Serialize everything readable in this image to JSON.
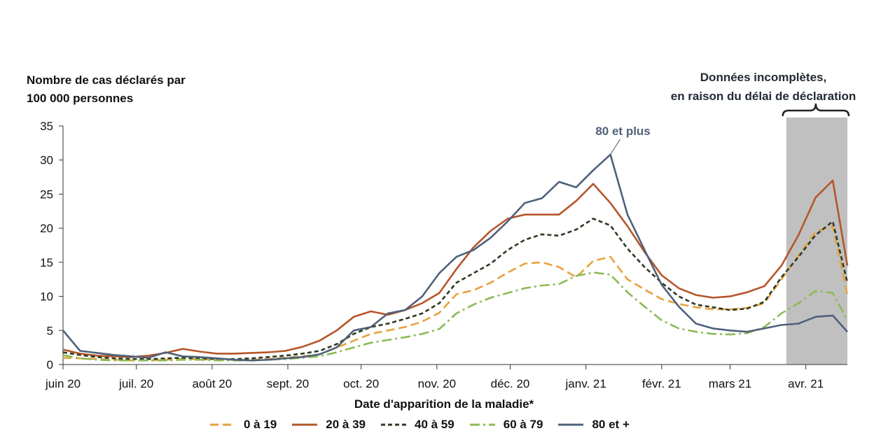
{
  "chart_data": {
    "type": "line",
    "ylabel": "Nombre de cas déclarés par 100 000 personnes",
    "ylabel_lines": [
      "Nombre de cas déclarés par",
      "100 000 personnes"
    ],
    "xlabel": "Date d'apparition de la maladie*",
    "ylim": [
      0,
      35
    ],
    "yticks": [
      0,
      5,
      10,
      15,
      20,
      25,
      30,
      35
    ],
    "x_unit": "days since 2020-06-01",
    "xlim": [
      0,
      321
    ],
    "xticks": [
      {
        "day": 0,
        "label": "juin 20"
      },
      {
        "day": 30,
        "label": "juil. 20"
      },
      {
        "day": 61,
        "label": "août 20"
      },
      {
        "day": 92,
        "label": "sept. 20"
      },
      {
        "day": 122,
        "label": "oct. 20"
      },
      {
        "day": 153,
        "label": "nov. 20"
      },
      {
        "day": 183,
        "label": "déc. 20"
      },
      {
        "day": 214,
        "label": "janv. 21"
      },
      {
        "day": 245,
        "label": "févr. 21"
      },
      {
        "day": 273,
        "label": "mars 21"
      },
      {
        "day": 304,
        "label": "avr. 21"
      }
    ],
    "x": [
      0,
      7,
      14,
      21,
      28,
      35,
      42,
      49,
      56,
      63,
      70,
      77,
      84,
      91,
      98,
      105,
      112,
      119,
      126,
      133,
      140,
      147,
      154,
      161,
      168,
      175,
      182,
      189,
      196,
      203,
      210,
      217,
      224,
      231,
      238,
      245,
      252,
      259,
      266,
      273,
      280,
      287,
      294,
      301,
      308,
      315,
      321
    ],
    "series": [
      {
        "name": "0 à 19",
        "color": "#e6a23c",
        "style": "dashed",
        "values": [
          1.0,
          0.9,
          0.8,
          0.7,
          0.6,
          0.6,
          0.7,
          0.8,
          0.8,
          0.7,
          0.7,
          0.7,
          0.8,
          1.0,
          1.2,
          1.5,
          2.5,
          3.5,
          4.5,
          5.0,
          5.5,
          6.3,
          7.6,
          10.3,
          10.9,
          12.0,
          13.5,
          14.8,
          15.0,
          14.3,
          12.8,
          15.2,
          15.8,
          12.5,
          11.0,
          9.6,
          8.9,
          8.4,
          8.1,
          8.1,
          8.3,
          9.0,
          12.5,
          16.0,
          19.5,
          20.3,
          10.2
        ]
      },
      {
        "name": "20 à 39",
        "color": "#b5562a",
        "style": "solid",
        "values": [
          2.2,
          1.6,
          1.3,
          1.2,
          1.1,
          1.3,
          1.7,
          2.3,
          1.9,
          1.6,
          1.6,
          1.7,
          1.8,
          2.0,
          2.6,
          3.5,
          5.0,
          7.0,
          7.8,
          7.3,
          8.0,
          9.0,
          10.5,
          14.0,
          17.2,
          19.6,
          21.4,
          22.0,
          22.0,
          22.0,
          24.0,
          26.5,
          23.7,
          20.3,
          16.5,
          13.1,
          11.2,
          10.2,
          9.8,
          10.0,
          10.6,
          11.5,
          14.5,
          19.0,
          24.5,
          27.0,
          14.5
        ]
      },
      {
        "name": "40 à 59",
        "color": "#2c3a22",
        "style": "short-dashed",
        "values": [
          1.8,
          1.4,
          1.1,
          0.9,
          0.8,
          0.8,
          0.9,
          1.0,
          0.9,
          0.8,
          0.8,
          0.9,
          1.1,
          1.3,
          1.6,
          2.0,
          3.0,
          4.5,
          5.5,
          6.0,
          6.7,
          7.5,
          9.0,
          12.0,
          13.4,
          14.8,
          16.8,
          18.3,
          19.1,
          18.9,
          19.8,
          21.4,
          20.4,
          17.0,
          14.3,
          12.0,
          10.0,
          8.8,
          8.4,
          8.0,
          8.2,
          9.2,
          12.8,
          15.8,
          19.0,
          21.0,
          12.0
        ]
      },
      {
        "name": "60 à 79",
        "color": "#8cba56",
        "style": "dash-dot",
        "values": [
          1.4,
          0.9,
          0.7,
          0.6,
          0.6,
          0.6,
          0.6,
          0.7,
          0.7,
          0.6,
          0.6,
          0.6,
          0.7,
          0.8,
          1.0,
          1.2,
          1.8,
          2.5,
          3.2,
          3.6,
          4.0,
          4.5,
          5.2,
          7.5,
          8.8,
          9.8,
          10.5,
          11.2,
          11.6,
          11.8,
          13.0,
          13.5,
          13.2,
          10.6,
          8.5,
          6.5,
          5.3,
          4.8,
          4.5,
          4.4,
          4.6,
          5.5,
          7.5,
          9.0,
          10.8,
          10.5,
          6.5
        ]
      },
      {
        "name": "80 et +",
        "color": "#4f6179",
        "style": "solid",
        "values": [
          5.0,
          2.0,
          1.7,
          1.4,
          1.2,
          1.0,
          1.8,
          1.2,
          1.1,
          0.9,
          0.7,
          0.6,
          0.7,
          0.9,
          1.1,
          1.5,
          2.5,
          5.0,
          5.5,
          7.5,
          8.0,
          10.0,
          13.4,
          15.8,
          16.8,
          18.6,
          21.0,
          23.7,
          24.4,
          26.8,
          26.0,
          28.5,
          30.8,
          22.0,
          16.8,
          11.7,
          8.5,
          6.0,
          5.3,
          5.0,
          4.8,
          5.3,
          5.8,
          6.0,
          7.0,
          7.2,
          4.8
        ]
      }
    ],
    "annotations": [
      {
        "text": "80 et plus",
        "series": "80 et +",
        "day": 224
      },
      {
        "text_lines": [
          "Données incomplètes,",
          "en raison du délai de déclaration"
        ],
        "shaded_from_day": 296,
        "shaded_to_day": 321
      }
    ],
    "legend_position": "bottom",
    "grid": false
  }
}
